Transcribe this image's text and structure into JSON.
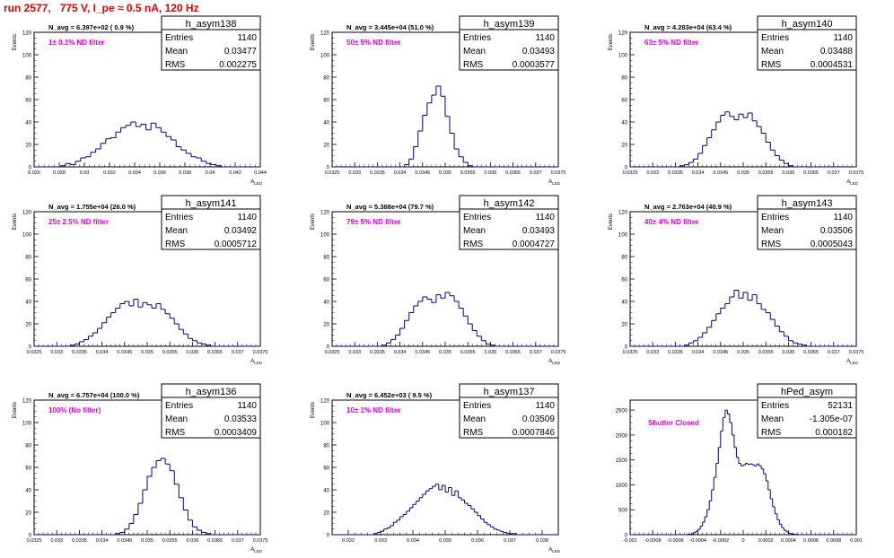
{
  "run_title": "run 2577,   775 V, I_pe ≈ 0.5 nA, 120 Hz",
  "colors": {
    "hist": "#000080",
    "title": "#e00000",
    "annotation": "#e000e0",
    "frame": "#000000"
  },
  "stat_labels": {
    "entries": "Entries",
    "mean": "Mean",
    "rms": "RMS"
  },
  "chart_data": [
    {
      "type": "bar",
      "name": "h_asym138",
      "ylabel": "Events",
      "xlabel": "A_{LED}",
      "norm": "N_avg = 6.397e+02 ( 0.9 %)",
      "filter": "1± 0.1% ND filter",
      "stats": {
        "entries": "1140",
        "mean": "0.03477",
        "rms": "0.002275"
      },
      "xlim": [
        0.026,
        0.044
      ],
      "ylim": [
        0,
        120
      ],
      "xticks": [
        0.026,
        0.028,
        0.03,
        0.032,
        0.034,
        0.036,
        0.038,
        0.04,
        0.042,
        0.044
      ],
      "xtick_labels": [
        "0.026",
        "0.028",
        "0.03",
        "0.032",
        "0.034",
        "0.036",
        "0.038",
        "0.04",
        "0.042",
        "0.044"
      ],
      "yticks": [
        0,
        20,
        40,
        60,
        80,
        100,
        120
      ],
      "ytick_labels": [
        "0",
        "20",
        "40",
        "60",
        "80",
        "100",
        "120"
      ],
      "x": [
        0.0283,
        0.0287,
        0.0291,
        0.0295,
        0.0299,
        0.0303,
        0.0307,
        0.0311,
        0.0315,
        0.0319,
        0.0323,
        0.0327,
        0.0331,
        0.0335,
        0.0339,
        0.0343,
        0.0347,
        0.0351,
        0.0355,
        0.0359,
        0.0363,
        0.0367,
        0.0371,
        0.0375,
        0.0379,
        0.0383,
        0.0387,
        0.0391,
        0.0395,
        0.0399,
        0.0403,
        0.0407
      ],
      "values": [
        1,
        3,
        2,
        5,
        8,
        9,
        13,
        16,
        21,
        25,
        26,
        31,
        35,
        37,
        40,
        36,
        38,
        33,
        39,
        35,
        31,
        27,
        24,
        18,
        15,
        12,
        9,
        8,
        5,
        3,
        2,
        1
      ]
    },
    {
      "type": "bar",
      "name": "h_asym139",
      "ylabel": "Events",
      "xlabel": "A_{LED}",
      "norm": "N_avg = 3.445e+04 (51.0 %)",
      "filter": "50± 5% ND filter",
      "stats": {
        "entries": "1140",
        "mean": "0.03493",
        "rms": "0.0003577"
      },
      "xlim": [
        0.0325,
        0.0375
      ],
      "ylim": [
        0,
        120
      ],
      "xticks": [
        0.0325,
        0.033,
        0.0335,
        0.034,
        0.0345,
        0.035,
        0.0355,
        0.036,
        0.0365,
        0.037,
        0.0375
      ],
      "xtick_labels": [
        "0.0325",
        "0.033",
        "0.0335",
        "0.034",
        "0.0345",
        "0.035",
        "0.0355",
        "0.036",
        "0.0365",
        "0.037",
        "0.0375"
      ],
      "yticks": [
        0,
        20,
        40,
        60,
        80,
        100,
        120
      ],
      "ytick_labels": [
        "0",
        "20",
        "40",
        "60",
        "80",
        "100",
        "120"
      ],
      "x": [
        0.03415,
        0.03425,
        0.03435,
        0.03445,
        0.03455,
        0.03465,
        0.03475,
        0.03485,
        0.03495,
        0.03505,
        0.03515,
        0.03525,
        0.03535,
        0.03545,
        0.03555
      ],
      "values": [
        2,
        7,
        18,
        32,
        46,
        57,
        64,
        72,
        63,
        45,
        30,
        16,
        9,
        4,
        1
      ]
    },
    {
      "type": "bar",
      "name": "h_asym140",
      "ylabel": "Events",
      "xlabel": "A_{LED}",
      "norm": "N_avg = 4.283e+04 (63.4 %)",
      "filter": "63± 5% ND filter",
      "stats": {
        "entries": "1140",
        "mean": "0.03488",
        "rms": "0.0004531"
      },
      "xlim": [
        0.0325,
        0.0375
      ],
      "ylim": [
        0,
        120
      ],
      "xticks": [
        0.0325,
        0.033,
        0.0335,
        0.034,
        0.0345,
        0.035,
        0.0355,
        0.036,
        0.0365,
        0.037,
        0.0375
      ],
      "xtick_labels": [
        "0.0325",
        "0.033",
        "0.0335",
        "0.034",
        "0.0345",
        "0.035",
        "0.0355",
        "0.036",
        "0.0365",
        "0.037",
        "0.0375"
      ],
      "yticks": [
        0,
        20,
        40,
        60,
        80,
        100,
        120
      ],
      "ytick_labels": [
        "0",
        "20",
        "40",
        "60",
        "80",
        "100",
        "120"
      ],
      "x": [
        0.03365,
        0.03375,
        0.03385,
        0.03395,
        0.03405,
        0.03415,
        0.03425,
        0.03435,
        0.03445,
        0.03455,
        0.03465,
        0.03475,
        0.03485,
        0.03495,
        0.03505,
        0.03515,
        0.03525,
        0.03535,
        0.03545,
        0.03555,
        0.03565,
        0.03575,
        0.03585,
        0.03595,
        0.03605
      ],
      "values": [
        1,
        2,
        4,
        7,
        12,
        19,
        26,
        33,
        40,
        46,
        49,
        45,
        42,
        47,
        44,
        48,
        41,
        36,
        30,
        22,
        15,
        10,
        6,
        3,
        1
      ]
    },
    {
      "type": "bar",
      "name": "h_asym141",
      "ylabel": "Events",
      "xlabel": "A_{LED}",
      "norm": "N_avg = 1.755e+04 (26.0 %)",
      "filter": "25± 2.5% ND filter",
      "stats": {
        "entries": "1140",
        "mean": "0.03492",
        "rms": "0.0005712"
      },
      "xlim": [
        0.0325,
        0.0375
      ],
      "ylim": [
        0,
        120
      ],
      "xticks": [
        0.0325,
        0.033,
        0.0335,
        0.034,
        0.0345,
        0.035,
        0.0355,
        0.036,
        0.0365,
        0.037,
        0.0375
      ],
      "xtick_labels": [
        "0.0325",
        "0.033",
        "0.0335",
        "0.034",
        "0.0345",
        "0.035",
        "0.0355",
        "0.036",
        "0.0365",
        "0.037",
        "0.0375"
      ],
      "yticks": [
        0,
        20,
        40,
        60,
        80,
        100,
        120
      ],
      "ytick_labels": [
        "0",
        "20",
        "40",
        "60",
        "80",
        "100",
        "120"
      ],
      "x": [
        0.03335,
        0.03345,
        0.03355,
        0.03365,
        0.03375,
        0.03385,
        0.03395,
        0.03405,
        0.03415,
        0.03425,
        0.03435,
        0.03445,
        0.03455,
        0.03465,
        0.03475,
        0.03485,
        0.03495,
        0.03505,
        0.03515,
        0.03525,
        0.03535,
        0.03545,
        0.03555,
        0.03565,
        0.03575,
        0.03585,
        0.03595,
        0.03605,
        0.03615,
        0.03625,
        0.03635
      ],
      "values": [
        1,
        2,
        4,
        6,
        9,
        12,
        16,
        21,
        26,
        30,
        34,
        38,
        40,
        36,
        42,
        35,
        39,
        37,
        34,
        38,
        33,
        29,
        25,
        20,
        15,
        11,
        7,
        5,
        3,
        2,
        1
      ]
    },
    {
      "type": "bar",
      "name": "h_asym142",
      "ylabel": "Events",
      "xlabel": "A_{LED}",
      "norm": "N_avg = 5.388e+04 (79.7 %)",
      "filter": "79± 5% ND filter",
      "stats": {
        "entries": "1140",
        "mean": "0.03493",
        "rms": "0.0004727"
      },
      "xlim": [
        0.0325,
        0.0375
      ],
      "ylim": [
        0,
        120
      ],
      "xticks": [
        0.0325,
        0.033,
        0.0335,
        0.034,
        0.0345,
        0.035,
        0.0355,
        0.036,
        0.0365,
        0.037,
        0.0375
      ],
      "xtick_labels": [
        "0.0325",
        "0.033",
        "0.0335",
        "0.034",
        "0.0345",
        "0.035",
        "0.0355",
        "0.036",
        "0.0365",
        "0.037",
        "0.0375"
      ],
      "yticks": [
        0,
        20,
        40,
        60,
        80,
        100,
        120
      ],
      "ytick_labels": [
        "0",
        "20",
        "40",
        "60",
        "80",
        "100",
        "120"
      ],
      "x": [
        0.03365,
        0.03375,
        0.03385,
        0.03395,
        0.03405,
        0.03415,
        0.03425,
        0.03435,
        0.03445,
        0.03455,
        0.03465,
        0.03475,
        0.03485,
        0.03495,
        0.03505,
        0.03515,
        0.03525,
        0.03535,
        0.03545,
        0.03555,
        0.03565,
        0.03575,
        0.03585,
        0.03595,
        0.03605
      ],
      "values": [
        1,
        3,
        6,
        10,
        16,
        23,
        30,
        36,
        40,
        44,
        42,
        39,
        46,
        43,
        48,
        45,
        40,
        34,
        27,
        20,
        14,
        9,
        5,
        2,
        1
      ]
    },
    {
      "type": "bar",
      "name": "h_asym143",
      "ylabel": "Events",
      "xlabel": "A_{LED}",
      "norm": "N_avg = 2.763e+04 (40.9 %)",
      "filter": "40± 4% ND filter",
      "stats": {
        "entries": "1140",
        "mean": "0.03506",
        "rms": "0.0005043"
      },
      "xlim": [
        0.0325,
        0.0375
      ],
      "ylim": [
        0,
        120
      ],
      "xticks": [
        0.0325,
        0.033,
        0.0335,
        0.034,
        0.0345,
        0.035,
        0.0355,
        0.036,
        0.0365,
        0.037,
        0.0375
      ],
      "xtick_labels": [
        "0.0325",
        "0.033",
        "0.0335",
        "0.034",
        "0.0345",
        "0.035",
        "0.0355",
        "0.036",
        "0.0365",
        "0.037",
        "0.0375"
      ],
      "yticks": [
        0,
        20,
        40,
        60,
        80,
        100,
        120
      ],
      "ytick_labels": [
        "0",
        "20",
        "40",
        "60",
        "80",
        "100",
        "120"
      ],
      "x": [
        0.03375,
        0.03385,
        0.03395,
        0.03405,
        0.03415,
        0.03425,
        0.03435,
        0.03445,
        0.03455,
        0.03465,
        0.03475,
        0.03485,
        0.03495,
        0.03505,
        0.03515,
        0.03525,
        0.03535,
        0.03545,
        0.03555,
        0.03565,
        0.03575,
        0.03585,
        0.03595,
        0.03605,
        0.03615,
        0.03625,
        0.03635
      ],
      "values": [
        1,
        3,
        5,
        8,
        12,
        17,
        23,
        29,
        34,
        38,
        44,
        50,
        43,
        48,
        41,
        46,
        38,
        33,
        30,
        24,
        18,
        13,
        9,
        5,
        3,
        2,
        1
      ]
    },
    {
      "type": "bar",
      "name": "h_asym136",
      "ylabel": "Events",
      "xlabel": "A_{LED}",
      "norm": "N_avg = 6.757e+04 (100.0 %)",
      "filter": "100% (No filter)",
      "stats": {
        "entries": "1140",
        "mean": "0.03533",
        "rms": "0.0003409"
      },
      "xlim": [
        0.0325,
        0.0375
      ],
      "ylim": [
        0,
        120
      ],
      "xticks": [
        0.0325,
        0.033,
        0.0335,
        0.034,
        0.0345,
        0.035,
        0.0355,
        0.036,
        0.0365,
        0.037,
        0.0375
      ],
      "xtick_labels": [
        "0.0325",
        "0.033",
        "0.0335",
        "0.034",
        "0.0345",
        "0.035",
        "0.0355",
        "0.036",
        "0.0365",
        "0.037",
        "0.0375"
      ],
      "yticks": [
        0,
        20,
        40,
        60,
        80,
        100,
        120
      ],
      "ytick_labels": [
        "0",
        "20",
        "40",
        "60",
        "80",
        "100",
        "120"
      ],
      "x": [
        0.03435,
        0.03445,
        0.03455,
        0.03465,
        0.03475,
        0.03485,
        0.03495,
        0.03505,
        0.03515,
        0.03525,
        0.03535,
        0.03545,
        0.03555,
        0.03565,
        0.03575,
        0.03585,
        0.03595,
        0.03605,
        0.03615,
        0.03625,
        0.03635
      ],
      "values": [
        1,
        2,
        5,
        10,
        18,
        28,
        40,
        52,
        60,
        66,
        68,
        63,
        57,
        45,
        33,
        22,
        13,
        7,
        4,
        2,
        1
      ]
    },
    {
      "type": "bar",
      "name": "h_asym137",
      "ylabel": "Events",
      "xlabel": "A_{LED}",
      "norm": "N_avg = 6.452e+03 ( 9.5 %)",
      "filter": "10± 1% ND filter",
      "stats": {
        "entries": "1140",
        "mean": "0.03509",
        "rms": "0.0007846"
      },
      "xlim": [
        0.0315,
        0.0385
      ],
      "ylim": [
        0,
        120
      ],
      "xticks": [
        0.032,
        0.033,
        0.034,
        0.035,
        0.036,
        0.037,
        0.038
      ],
      "xtick_labels": [
        "0.032",
        "0.033",
        "0.034",
        "0.035",
        "0.036",
        "0.037",
        "0.038"
      ],
      "yticks": [
        0,
        20,
        40,
        60,
        80,
        100,
        120
      ],
      "ytick_labels": [
        "0",
        "20",
        "40",
        "60",
        "80",
        "100",
        "120"
      ],
      "x": [
        0.03285,
        0.03295,
        0.03305,
        0.03315,
        0.03325,
        0.03335,
        0.03345,
        0.03355,
        0.03365,
        0.03375,
        0.03385,
        0.03395,
        0.03405,
        0.03415,
        0.03425,
        0.03435,
        0.03445,
        0.03455,
        0.03465,
        0.03475,
        0.03485,
        0.03495,
        0.03505,
        0.03515,
        0.03525,
        0.03535,
        0.03545,
        0.03555,
        0.03565,
        0.03575,
        0.03585,
        0.03595,
        0.03605,
        0.03615,
        0.03625,
        0.03635,
        0.03645,
        0.03655,
        0.03665,
        0.03675,
        0.03685,
        0.03695,
        0.03705,
        0.03715
      ],
      "values": [
        1,
        2,
        3,
        5,
        6,
        8,
        11,
        13,
        16,
        18,
        21,
        24,
        27,
        30,
        33,
        36,
        39,
        41,
        43,
        45,
        40,
        44,
        38,
        42,
        35,
        39,
        33,
        31,
        28,
        26,
        23,
        20,
        17,
        14,
        11,
        9,
        7,
        5,
        4,
        3,
        2,
        1,
        1,
        1
      ]
    },
    {
      "type": "bar",
      "name": "hPed_asym",
      "ylabel": "",
      "xlabel": "",
      "norm": "",
      "filter": "Shutter Closed",
      "stats": {
        "entries": "52131",
        "mean": "-1.305e-07",
        "rms": "0.000182"
      },
      "xlim": [
        -0.001,
        0.001
      ],
      "ylim": [
        0,
        2700
      ],
      "xticks": [
        -0.001,
        -0.0008,
        -0.0006,
        -0.0004,
        -0.0002,
        0,
        0.0002,
        0.0004,
        0.0006,
        0.0008,
        0.001
      ],
      "xtick_labels": [
        "-0.001",
        "-0.0008",
        "-0.0006",
        "-0.0004",
        "-0.0002",
        "0",
        "0.0002",
        "0.0004",
        "0.0006",
        "0.0008",
        "0.001"
      ],
      "yticks": [
        0,
        500,
        1000,
        1500,
        2000,
        2500
      ],
      "ytick_labels": [
        "0",
        "500",
        "1000",
        "1500",
        "2000",
        "2500"
      ],
      "x": [
        -0.00049,
        -0.00047,
        -0.00045,
        -0.00043,
        -0.00041,
        -0.00039,
        -0.00037,
        -0.00035,
        -0.00033,
        -0.00031,
        -0.00029,
        -0.00027,
        -0.00025,
        -0.00023,
        -0.00021,
        -0.00019,
        -0.00017,
        -0.00015,
        -0.00013,
        -0.00011,
        -9e-05,
        -7e-05,
        -5e-05,
        -3e-05,
        -1e-05,
        1e-05,
        3e-05,
        5e-05,
        7e-05,
        9e-05,
        0.00011,
        0.00013,
        0.00015,
        0.00017,
        0.00019,
        0.00021,
        0.00023,
        0.00025,
        0.00027,
        0.00029,
        0.00031,
        0.00033,
        0.00035,
        0.00037,
        0.00039,
        0.00041,
        0.00043,
        0.00045,
        0.00047,
        0.00049
      ],
      "values": [
        5,
        10,
        20,
        40,
        70,
        110,
        170,
        250,
        360,
        500,
        680,
        900,
        1150,
        1430,
        1750,
        2080,
        2350,
        2500,
        2420,
        2250,
        2000,
        1750,
        1550,
        1430,
        1380,
        1400,
        1430,
        1410,
        1420,
        1400,
        1380,
        1420,
        1380,
        1320,
        1220,
        1080,
        900,
        720,
        560,
        420,
        300,
        210,
        140,
        90,
        55,
        30,
        18,
        10,
        5,
        2
      ]
    }
  ]
}
